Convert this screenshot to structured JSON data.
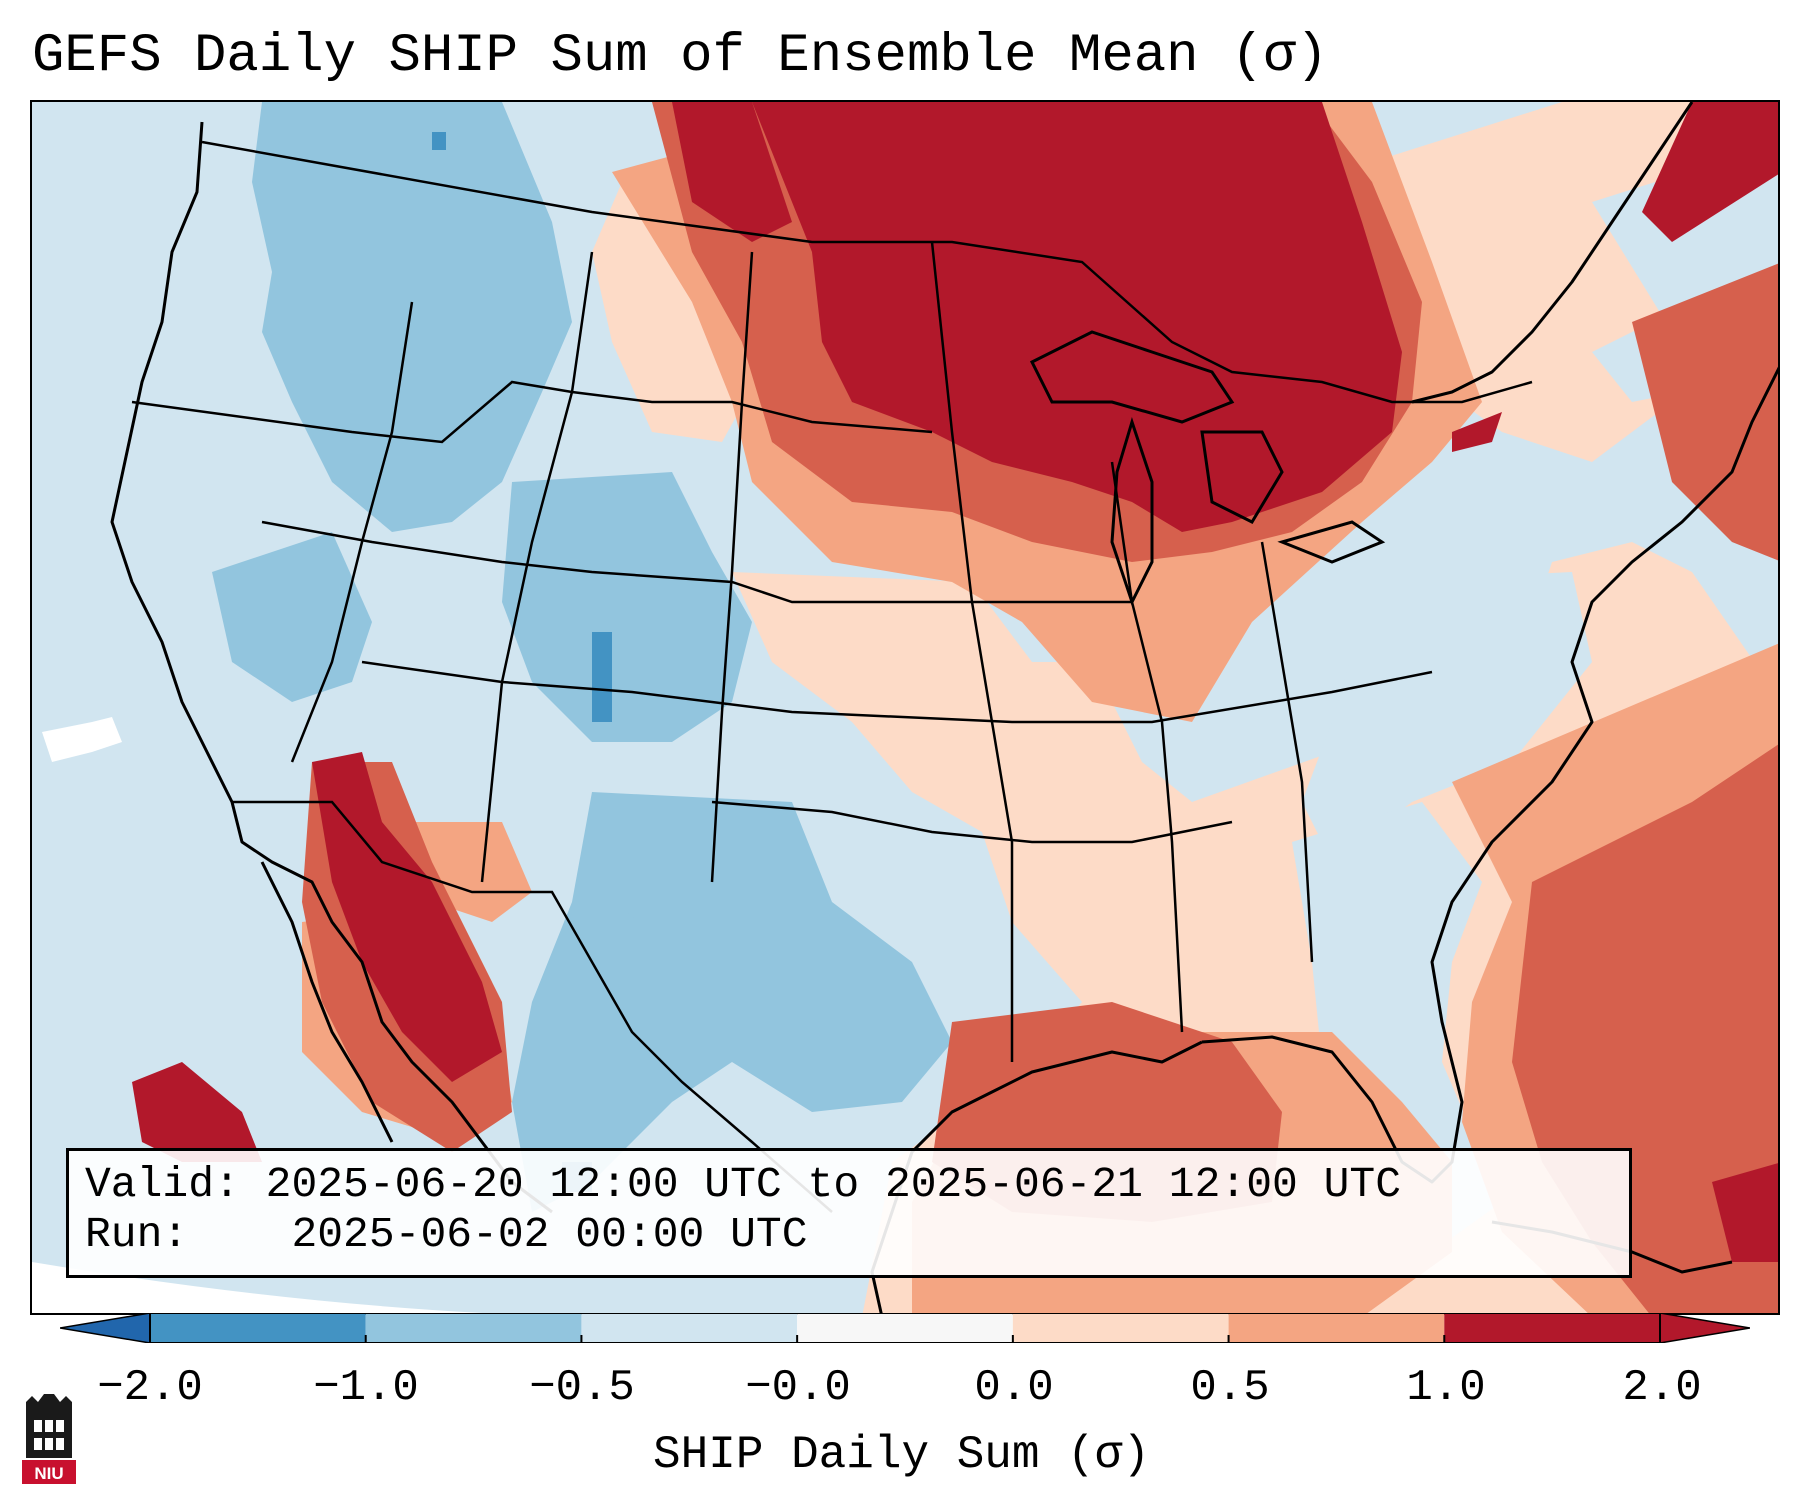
{
  "title": "GEFS Daily SHIP Sum of Ensemble Mean (σ)",
  "info": {
    "valid_label": "Valid:",
    "valid_text": "2025-06-20 12:00 UTC to 2025-06-21 12:00 UTC",
    "run_label": "Run:",
    "run_text": "2025-06-02 00:00 UTC"
  },
  "colorbar": {
    "label": "SHIP Daily Sum (σ)",
    "ticks": [
      "−2.0",
      "−1.0",
      "−0.5",
      "−0.0",
      "0.0",
      "0.5",
      "1.0",
      "2.0"
    ],
    "colors": [
      "#4393c3",
      "#92c5de",
      "#d1e5f0",
      "#f7f7f7",
      "#fddbc7",
      "#f4a582",
      "#d6604d",
      "#b2182b"
    ],
    "under_color": "#2166ac",
    "over_color": "#b2182b"
  },
  "colors": {
    "neg_strong": "#4393c3",
    "neg_mid": "#92c5de",
    "neg_weak": "#d1e5f0",
    "pos_weak": "#fddbc7",
    "pos_mid": "#f4a582",
    "pos_strong": "#d6604d",
    "pos_max": "#b2182b"
  },
  "logo": {
    "text": "NIU"
  }
}
